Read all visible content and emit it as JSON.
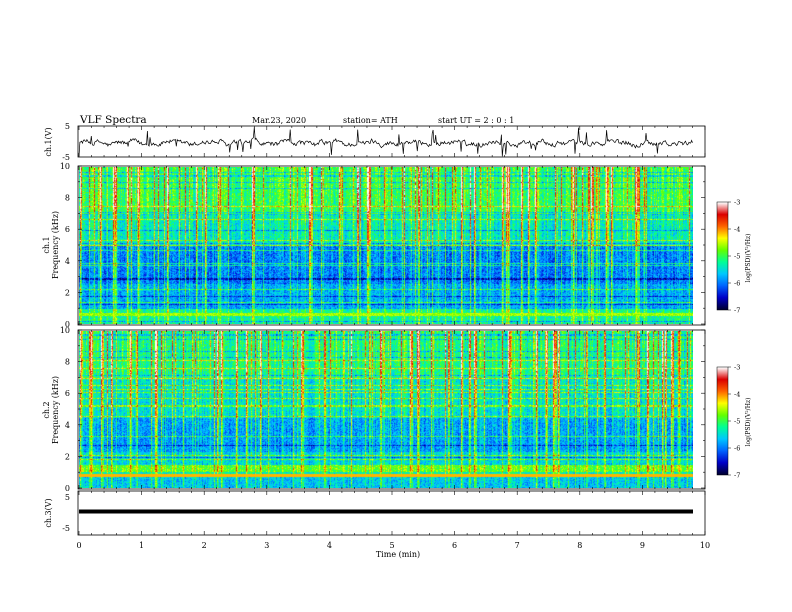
{
  "header": {
    "title": "VLF  Spectra",
    "date": "Mar.23, 2020",
    "station": "station= ATH",
    "start_ut": "start  UT  =    2  : 0   : 1"
  },
  "chart_data": [
    {
      "type": "line",
      "name": "ch1-waveform",
      "ylabel": "ch.1(V)",
      "yticks": [
        "5",
        "-5"
      ],
      "ylim": [
        -5,
        5
      ],
      "xlim": [
        0,
        10
      ],
      "baseline": -0.5
    },
    {
      "type": "heatmap",
      "name": "ch1-spectrogram",
      "ylabel": "ch.1\nFrequency  (kHz)",
      "ylim": [
        0,
        10
      ],
      "yticks": [
        "0",
        "2",
        "4",
        "6",
        "8",
        "10"
      ],
      "xlim": [
        0,
        9.8
      ],
      "colorbar": {
        "label": "log(PSD)(V²/Hz)",
        "range": [
          -7,
          -3
        ],
        "ticks": [
          "-3",
          "-4",
          "-5",
          "-6",
          "-7"
        ]
      }
    },
    {
      "type": "heatmap",
      "name": "ch2-spectrogram",
      "ylabel": "ch.2\nFrequency  (kHz)",
      "ylim": [
        0,
        10
      ],
      "yticks": [
        "0",
        "2",
        "4",
        "6",
        "8",
        "10"
      ],
      "xlim": [
        0,
        9.8
      ],
      "colorbar": {
        "label": "log(PSD)(V²/Hz)",
        "range": [
          -7,
          -3
        ],
        "ticks": [
          "-3",
          "-4",
          "-5",
          "-6",
          "-7"
        ]
      }
    },
    {
      "type": "line",
      "name": "ch3-waveform",
      "ylabel": "ch.3(V)",
      "yticks": [
        "5",
        "-5"
      ],
      "ylim": [
        -5,
        5
      ],
      "xlim": [
        0,
        10
      ],
      "baseline": -1.5
    }
  ],
  "xaxis": {
    "label": "Time  (min)",
    "ticks": [
      "0",
      "1",
      "2",
      "3",
      "4",
      "5",
      "6",
      "7",
      "8",
      "9",
      "10"
    ],
    "range": [
      0,
      10
    ]
  },
  "colors": {
    "colormap": [
      "#000033",
      "#0000c8",
      "#0064ff",
      "#00c8ff",
      "#00ff96",
      "#64ff00",
      "#ffff00",
      "#ff6400",
      "#dc0000",
      "#ffffff"
    ]
  }
}
